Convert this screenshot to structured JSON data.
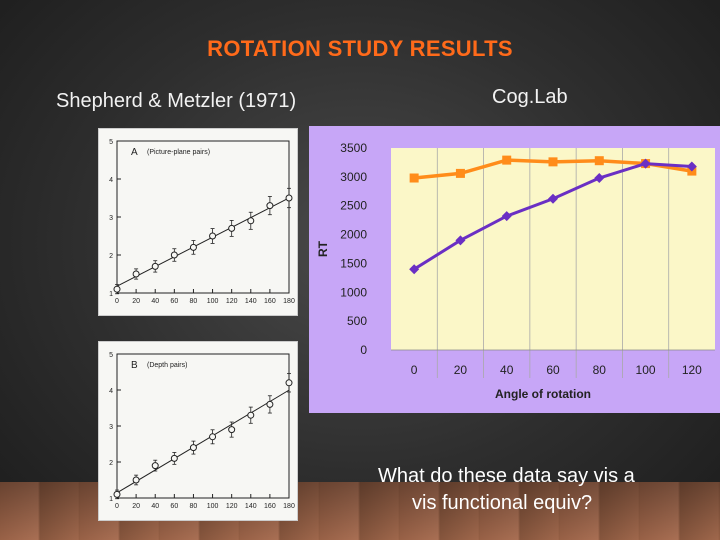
{
  "slide": {
    "title": "ROTATION STUDY RESULTS",
    "left_heading": "Shepherd & Metzler (1971)",
    "right_heading": "Cog.Lab",
    "question_line1": "What do these data say vis a",
    "question_line2": "vis functional equiv?"
  },
  "colors": {
    "title": "#ff6a1a",
    "cog_panel_bg": "#c7a6f7",
    "cog_plot_bg": "#fbf7c8",
    "series_orange": "#ff8c1a",
    "series_purple": "#6a2fc4"
  },
  "chart_data": [
    {
      "type": "line",
      "panel_label": "A",
      "panel_note": "(Picture-plane pairs)",
      "x": [
        0,
        20,
        40,
        60,
        80,
        100,
        120,
        140,
        160,
        180
      ],
      "y": [
        1.1,
        1.5,
        1.7,
        2.0,
        2.2,
        2.5,
        2.7,
        2.9,
        3.3,
        3.5
      ],
      "xticks": [
        "0",
        "20",
        "40",
        "60",
        "80",
        "100",
        "120",
        "140",
        "160",
        "180"
      ],
      "yticks": [
        "1",
        "2",
        "3",
        "4",
        "5"
      ],
      "xlim": [
        0,
        180
      ],
      "ylim": [
        1,
        5
      ],
      "markers": "open circles with error bars",
      "fit": "linear"
    },
    {
      "type": "line",
      "panel_label": "B",
      "panel_note": "(Depth pairs)",
      "x": [
        0,
        20,
        40,
        60,
        80,
        100,
        120,
        140,
        160,
        180
      ],
      "y": [
        1.1,
        1.5,
        1.9,
        2.1,
        2.4,
        2.7,
        2.9,
        3.3,
        3.6,
        4.2
      ],
      "xticks": [
        "0",
        "20",
        "40",
        "60",
        "80",
        "100",
        "120",
        "140",
        "160",
        "180"
      ],
      "yticks": [
        "1",
        "2",
        "3",
        "4",
        "5"
      ],
      "xlim": [
        0,
        180
      ],
      "ylim": [
        1,
        5
      ],
      "markers": "open circles with error bars",
      "fit": "linear"
    },
    {
      "type": "line",
      "categories": [
        "0",
        "20",
        "40",
        "60",
        "80",
        "100",
        "120"
      ],
      "xlabel": "Angle of rotation",
      "ylabel": "RT",
      "ylim": [
        0,
        3500
      ],
      "yticks": [
        0,
        500,
        1000,
        1500,
        2000,
        2500,
        3000,
        3500
      ],
      "grid": "vertical",
      "series": [
        {
          "values": [
            2980,
            3060,
            3290,
            3260,
            3280,
            3230,
            3100
          ],
          "color": "#ff8c1a",
          "marker": "square"
        },
        {
          "values": [
            1400,
            1900,
            2320,
            2620,
            2980,
            3230,
            3180
          ],
          "color": "#6a2fc4",
          "marker": "diamond"
        }
      ]
    }
  ]
}
